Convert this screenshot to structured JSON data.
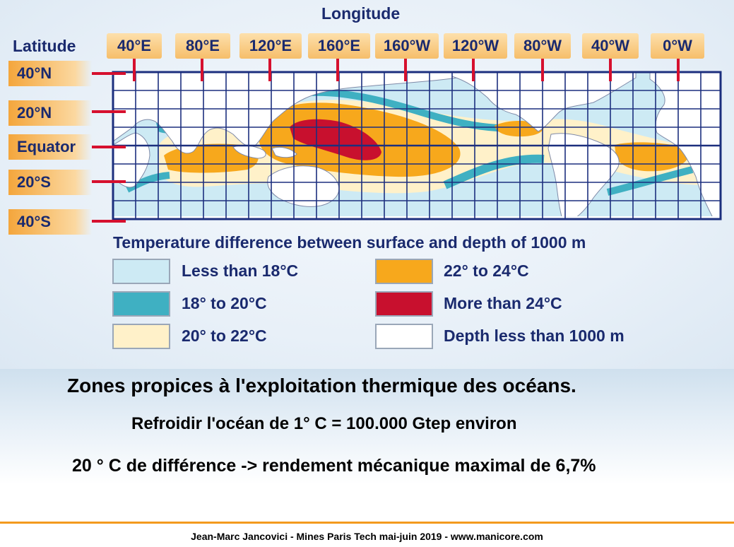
{
  "map": {
    "longitude_title": "Longitude",
    "latitude_title": "Latitude",
    "longitude_labels": [
      "40°E",
      "80°E",
      "120°E",
      "160°E",
      "160°W",
      "120°W",
      "80°W",
      "40°W",
      "0°W"
    ],
    "latitude_labels": [
      "40°N",
      "20°N",
      "Equator",
      "20°S",
      "40°S"
    ],
    "colors": {
      "ocean_light": "#cdeaf4",
      "teal": "#3fb0c2",
      "cream": "#fff1c9",
      "orange": "#f7a81c",
      "red": "#c8102e",
      "land": "#ffffff",
      "grid": "#1c2f7e"
    }
  },
  "legend": {
    "title": "Temperature difference between surface and depth of 1000 m",
    "items": [
      {
        "label": "Less than 18°C",
        "color": "#cdeaf4"
      },
      {
        "label": "18° to 20°C",
        "color": "#3fb0c2"
      },
      {
        "label": "20° to 22°C",
        "color": "#fff1c9"
      },
      {
        "label": "22° to 24°C",
        "color": "#f7a81c"
      },
      {
        "label": "More than 24°C",
        "color": "#c8102e"
      },
      {
        "label": "Depth less than 1000 m",
        "color": "#ffffff"
      }
    ]
  },
  "caption": {
    "headline": "Zones propices à l'exploitation thermique des océans.",
    "line1": "Refroidir l'océan de 1°  C = 100.000 Gtep environ",
    "line2": "20 °  C de différence -> rendement mécanique maximal de 6,7%"
  },
  "footer": "Jean-Marc Jancovici - Mines Paris Tech mai-juin 2019 - www.manicore.com"
}
